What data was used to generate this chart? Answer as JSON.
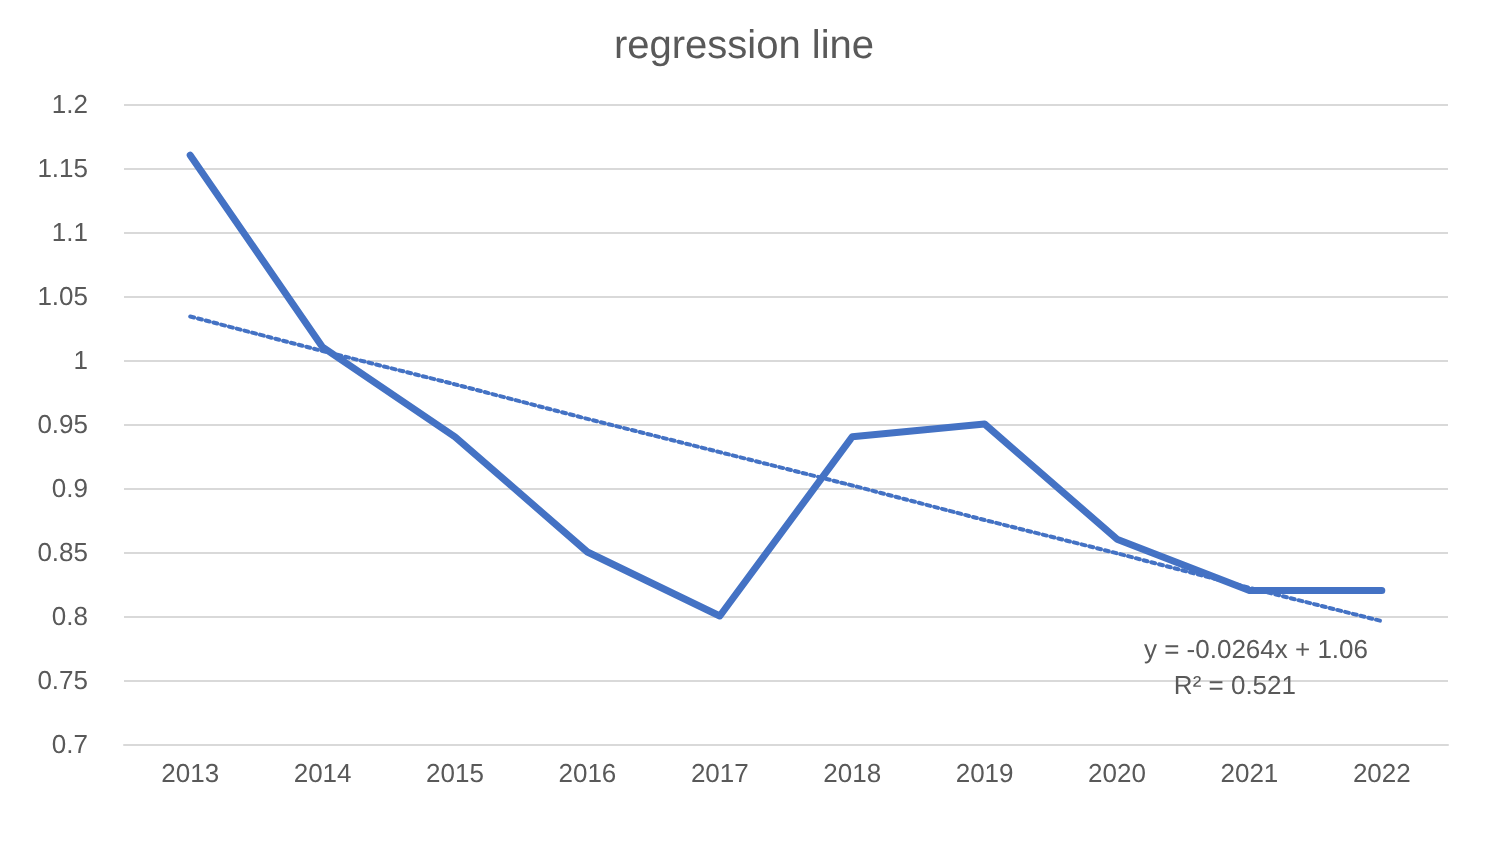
{
  "chart_data": {
    "type": "line",
    "title": "regression line",
    "categories": [
      "2013",
      "2014",
      "2015",
      "2016",
      "2017",
      "2018",
      "2019",
      "2020",
      "2021",
      "2022"
    ],
    "series": [
      {
        "color": "#4472c4",
        "values": [
          1.16,
          1.01,
          0.94,
          0.85,
          0.8,
          0.94,
          0.95,
          0.86,
          0.82,
          0.82
        ]
      },
      {
        "color": "#4472c4",
        "line_style": "dotted",
        "values": [
          1.034,
          1.007,
          0.981,
          0.954,
          0.928,
          0.902,
          0.875,
          0.849,
          0.822,
          0.796
        ]
      }
    ],
    "ylim": [
      0.7,
      1.2
    ],
    "yticks": [
      0.7,
      0.75,
      0.8,
      0.85,
      0.9,
      0.95,
      1,
      1.05,
      1.1,
      1.15,
      1.2
    ],
    "grid": "y",
    "marker": "none",
    "line_style": "solid",
    "annotations": [
      "y = -0.0264x + 1.06",
      "R² = 0.521"
    ]
  }
}
